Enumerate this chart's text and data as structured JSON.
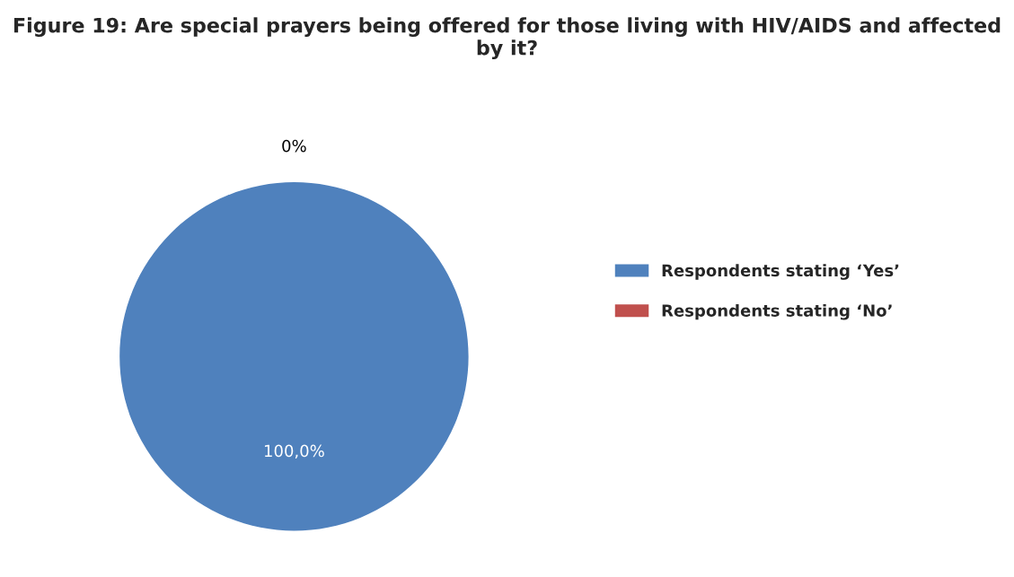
{
  "chart_data": {
    "type": "pie",
    "title": "Figure 19: Are special prayers being offered for those living with HIV/AIDS and affected by it?",
    "categories": [
      "Respondents stating ‘Yes’",
      "Respondents stating ‘No’"
    ],
    "values": [
      100,
      0
    ],
    "colors": [
      "#4f81bd",
      "#c0504d"
    ],
    "value_labels": [
      "100,0%",
      "0%"
    ],
    "legend": "right"
  }
}
